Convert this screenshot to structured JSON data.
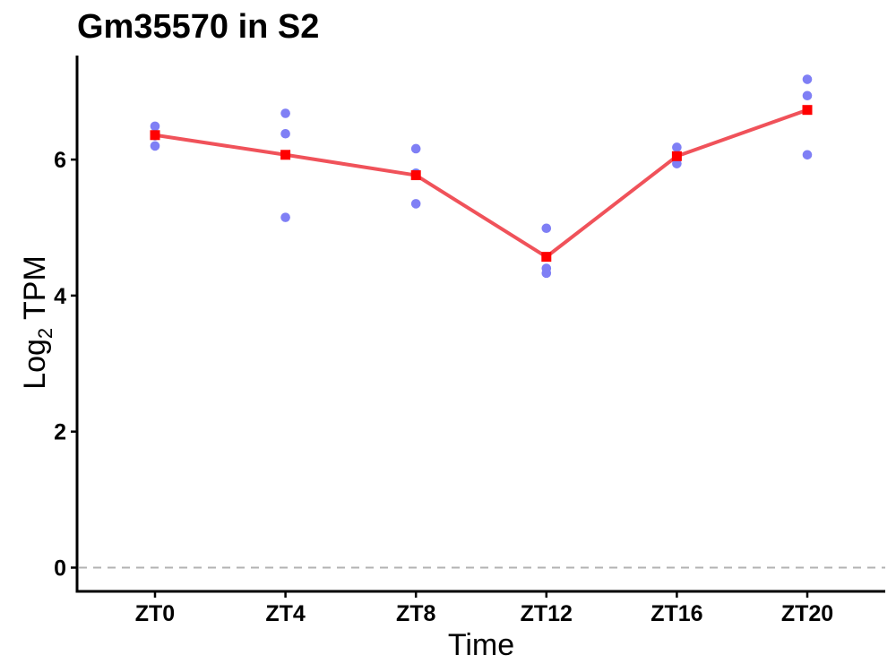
{
  "chart_data": {
    "type": "line",
    "title": "Gm35570 in S2",
    "xlabel": "Time",
    "ylabel": {
      "text": "Log",
      "subscript": "2",
      "suffix": " TPM"
    },
    "categories": [
      "ZT0",
      "ZT4",
      "ZT8",
      "ZT12",
      "ZT16",
      "ZT20"
    ],
    "yticks": [
      0,
      2,
      4,
      6
    ],
    "ylim": [
      -0.35,
      7.5
    ],
    "reference_line": {
      "y": 0,
      "style": "dashed",
      "color": "#b3b3b3"
    },
    "grid": false,
    "legend": "none",
    "series": [
      {
        "type": "line",
        "marker": "square",
        "color": "#f0525a",
        "marker_color": "#ff0000",
        "values": [
          6.36,
          6.07,
          5.77,
          4.57,
          6.05,
          6.73
        ]
      },
      {
        "type": "scatter",
        "marker": "circle",
        "color": "#7f7ff5",
        "points": [
          [
            0,
            6.49
          ],
          [
            0,
            6.35
          ],
          [
            0,
            6.2
          ],
          [
            1,
            6.68
          ],
          [
            1,
            6.38
          ],
          [
            1,
            5.15
          ],
          [
            2,
            6.16
          ],
          [
            2,
            5.8
          ],
          [
            2,
            5.35
          ],
          [
            3,
            4.99
          ],
          [
            3,
            4.4
          ],
          [
            3,
            4.33
          ],
          [
            4,
            6.18
          ],
          [
            4,
            6.05
          ],
          [
            4,
            5.94
          ],
          [
            5,
            7.18
          ],
          [
            5,
            6.94
          ],
          [
            5,
            6.07
          ]
        ]
      }
    ]
  }
}
